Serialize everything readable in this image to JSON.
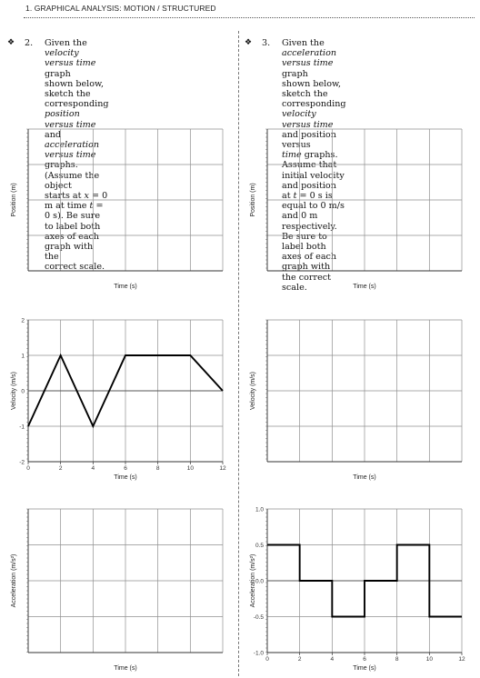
{
  "header": {
    "title": "1. GRAPHICAL ANALYSIS: MOTION / STRUCTURED"
  },
  "problems": [
    {
      "number": "2.",
      "lines": [
        "Given the velocity versus time graph",
        "shown below, sketch the corresponding",
        "position versus time and acceleration",
        "versus time graphs. (Assume the object",
        "starts at x = 0 m at time t = 0 s). Be sure",
        "to label both axes of each graph with the",
        "correct scale."
      ]
    },
    {
      "number": "3.",
      "lines": [
        "Given the acceleration versus time graph",
        "shown below, sketch the corresponding",
        "velocity versus time and position versus",
        "time graphs. Assume that initial velocity",
        "and position at t = 0 s is equal to 0 m/s",
        "and 0 m respectively. Be sure to label both",
        "axes of each graph with the correct scale."
      ]
    }
  ],
  "chart_data": [
    {
      "type": "line",
      "ylabel": "Position (m)",
      "xlabel": "Time (s)",
      "x": [],
      "y": []
    },
    {
      "type": "line",
      "ylabel": "Velocity (m/s)",
      "xlabel": "Time (s)",
      "x": [
        0,
        2,
        4,
        6,
        10,
        12
      ],
      "y": [
        -1,
        1,
        -1,
        1,
        1,
        0
      ],
      "xlim": [
        0,
        12
      ],
      "ylim": [
        -2,
        2
      ],
      "xticks": [
        "0",
        "2",
        "4",
        "6",
        "8",
        "10",
        "12"
      ],
      "yticks": [
        "2",
        "1",
        "0",
        "-1",
        "-2"
      ]
    },
    {
      "type": "line",
      "ylabel": "Acceleration (m/s²)",
      "xlabel": "Time (s)",
      "x": [],
      "y": []
    },
    {
      "type": "line",
      "ylabel": "Position (m)",
      "xlabel": "Time (s)",
      "x": [],
      "y": []
    },
    {
      "type": "line",
      "ylabel": "Velocity (m/s)",
      "xlabel": "Time (s)",
      "x": [],
      "y": []
    },
    {
      "type": "line",
      "ylabel": "Acceleration (m/s²)",
      "xlabel": "Time (s)",
      "x": [
        0,
        2,
        2,
        4,
        4,
        6,
        6,
        8,
        8,
        10,
        10,
        12
      ],
      "y": [
        0.5,
        0.5,
        0,
        0,
        -0.5,
        -0.5,
        0,
        0,
        0.5,
        0.5,
        -0.5,
        -0.5
      ],
      "xlim": [
        0,
        12
      ],
      "ylim": [
        -1,
        1
      ],
      "xticks": [
        "0",
        "2",
        "4",
        "6",
        "8",
        "10",
        "12"
      ],
      "yticks": [
        "1.0",
        "0.5",
        "0.0",
        "-0.5",
        "-1.0"
      ]
    }
  ]
}
